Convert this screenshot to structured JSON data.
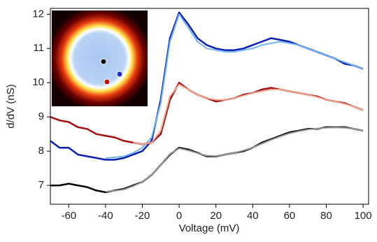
{
  "chart_data": {
    "type": "line",
    "x_label": "Voltage (mV)",
    "y_label": "d/dV (nS)",
    "x": [
      -70,
      -65,
      -60,
      -55,
      -50,
      -45,
      -40,
      -35,
      -30,
      -25,
      -20,
      -15,
      -10,
      -5,
      0,
      5,
      10,
      15,
      20,
      25,
      30,
      35,
      40,
      45,
      50,
      55,
      60,
      65,
      70,
      75,
      80,
      85,
      90,
      95,
      100
    ],
    "xlim": [
      -70,
      103
    ],
    "xticks": [
      -60,
      -40,
      -20,
      0,
      20,
      40,
      60,
      80,
      100
    ],
    "ylim": [
      6.45,
      12.17
    ],
    "yticks": [
      7,
      8,
      9,
      10,
      11,
      12
    ],
    "series": [
      {
        "color": "#0a1fb8",
        "width": 2.5,
        "values": [
          8.3,
          8.1,
          8.1,
          7.9,
          7.85,
          7.8,
          7.75,
          7.75,
          7.8,
          7.9,
          8.0,
          8.3,
          9.5,
          11.3,
          12.05,
          11.7,
          11.3,
          11.1,
          11.0,
          10.95,
          10.95,
          11.0,
          11.1,
          11.2,
          11.3,
          11.25,
          11.2,
          11.1,
          11.0,
          10.9,
          10.8,
          10.7,
          10.55,
          10.5,
          10.4
        ]
      },
      {
        "color": "#6fb4f0",
        "width": 2,
        "values": [
          null,
          null,
          null,
          null,
          null,
          null,
          7.8,
          7.82,
          7.85,
          7.95,
          8.1,
          8.4,
          9.4,
          11.2,
          12.0,
          11.6,
          11.2,
          11.0,
          10.95,
          10.9,
          10.9,
          10.95,
          11.0,
          11.1,
          11.15,
          11.2,
          11.15,
          11.1,
          11.0,
          10.9,
          10.8,
          10.7,
          10.6,
          10.5,
          10.4
        ]
      },
      {
        "color": "#a50f0f",
        "width": 2.5,
        "values": [
          9.0,
          8.9,
          8.85,
          8.7,
          8.65,
          8.5,
          8.45,
          8.4,
          8.3,
          8.25,
          8.2,
          8.25,
          8.5,
          9.5,
          10.0,
          9.8,
          9.65,
          9.55,
          9.45,
          9.5,
          9.55,
          9.65,
          9.7,
          9.8,
          9.85,
          9.8,
          9.75,
          9.7,
          9.65,
          9.6,
          9.5,
          9.45,
          9.4,
          9.3,
          9.2
        ]
      },
      {
        "color": "#f0a890",
        "width": 2,
        "values": [
          null,
          null,
          null,
          null,
          null,
          null,
          null,
          null,
          null,
          8.25,
          8.2,
          8.25,
          8.6,
          9.6,
          9.95,
          9.8,
          9.65,
          9.55,
          9.5,
          9.5,
          9.55,
          9.62,
          9.7,
          9.75,
          9.8,
          9.8,
          9.75,
          9.7,
          9.65,
          9.58,
          9.5,
          9.45,
          9.38,
          9.3,
          9.2
        ]
      },
      {
        "color": "#000000",
        "width": 2.5,
        "values": [
          7.0,
          7.0,
          7.05,
          7.0,
          6.95,
          6.85,
          6.8,
          6.85,
          6.9,
          7.0,
          7.1,
          7.3,
          7.6,
          7.9,
          8.1,
          8.05,
          7.95,
          7.85,
          7.85,
          7.9,
          7.95,
          8.0,
          8.1,
          8.25,
          8.35,
          8.45,
          8.55,
          8.6,
          8.65,
          8.65,
          8.7,
          8.7,
          8.7,
          8.65,
          8.6
        ]
      },
      {
        "color": "#9a9a9a",
        "width": 2,
        "values": [
          null,
          null,
          null,
          null,
          null,
          null,
          6.82,
          6.84,
          6.88,
          6.98,
          7.1,
          7.3,
          7.6,
          7.92,
          8.08,
          8.02,
          7.94,
          7.87,
          7.86,
          7.9,
          7.95,
          8.02,
          8.1,
          8.22,
          8.33,
          8.43,
          8.52,
          8.58,
          8.63,
          8.66,
          8.68,
          8.69,
          8.68,
          8.65,
          8.6
        ]
      }
    ]
  }
}
